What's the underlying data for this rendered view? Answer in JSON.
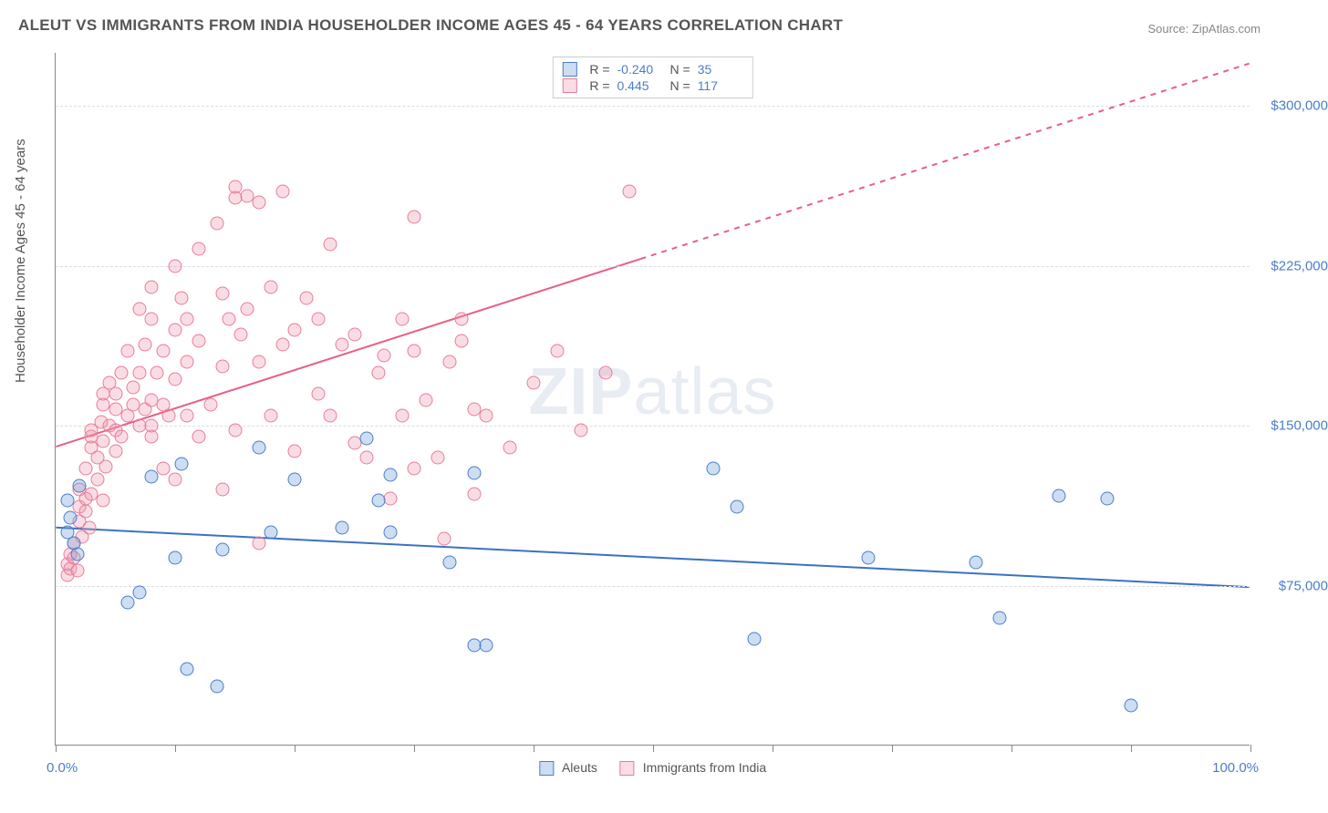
{
  "title": "ALEUT VS IMMIGRANTS FROM INDIA HOUSEHOLDER INCOME AGES 45 - 64 YEARS CORRELATION CHART",
  "source": "Source: ZipAtlas.com",
  "watermark_zip": "ZIP",
  "watermark_atlas": "atlas",
  "y_axis_label": "Householder Income Ages 45 - 64 years",
  "chart": {
    "type": "scatter",
    "background_color": "#ffffff",
    "grid_color": "#dddddd",
    "axis_color": "#888888",
    "xlim": [
      0,
      100
    ],
    "ylim": [
      0,
      325000
    ],
    "x_tick_positions": [
      0,
      10,
      20,
      30,
      40,
      50,
      60,
      70,
      80,
      90,
      100
    ],
    "x_min_label": "0.0%",
    "x_max_label": "100.0%",
    "y_ticks": [
      {
        "value": 75000,
        "label": "$75,000"
      },
      {
        "value": 150000,
        "label": "$150,000"
      },
      {
        "value": 225000,
        "label": "$225,000"
      },
      {
        "value": 300000,
        "label": "$300,000"
      }
    ],
    "marker_radius": 7.5,
    "line_width": 2,
    "series": [
      {
        "id": "aleuts",
        "label": "Aleuts",
        "fill_color": "rgba(113,161,221,0.35)",
        "stroke_color": "#4a7ec9",
        "line_color": "#3a72c4",
        "R": "-0.240",
        "N": "35",
        "trend": {
          "x1": 0,
          "y1": 102000,
          "x2": 100,
          "y2": 74000,
          "dash_from_x": 100
        },
        "points": [
          [
            1,
            115000
          ],
          [
            1,
            100000
          ],
          [
            1.2,
            107000
          ],
          [
            1.5,
            95000
          ],
          [
            1.8,
            90000
          ],
          [
            2,
            122000
          ],
          [
            6,
            67000
          ],
          [
            7,
            72000
          ],
          [
            8,
            126000
          ],
          [
            10,
            88000
          ],
          [
            10.5,
            132000
          ],
          [
            11,
            36000
          ],
          [
            13.5,
            28000
          ],
          [
            14,
            92000
          ],
          [
            17,
            140000
          ],
          [
            18,
            100000
          ],
          [
            20,
            125000
          ],
          [
            24,
            102000
          ],
          [
            26,
            144000
          ],
          [
            27,
            115000
          ],
          [
            28,
            100000
          ],
          [
            28,
            127000
          ],
          [
            33,
            86000
          ],
          [
            35,
            47000
          ],
          [
            35,
            128000
          ],
          [
            36,
            47000
          ],
          [
            55,
            130000
          ],
          [
            57,
            112000
          ],
          [
            58.5,
            50000
          ],
          [
            68,
            88000
          ],
          [
            77,
            86000
          ],
          [
            79,
            60000
          ],
          [
            84,
            117000
          ],
          [
            88,
            116000
          ],
          [
            90,
            19000
          ]
        ]
      },
      {
        "id": "immigrants_india",
        "label": "Immigrants from India",
        "fill_color": "rgba(240,150,170,0.32)",
        "stroke_color": "#e77d9a",
        "line_color": "#e85f85",
        "R": "0.445",
        "N": "117",
        "trend": {
          "x1": 0,
          "y1": 140000,
          "x2": 100,
          "y2": 320000,
          "dash_from_x": 49
        },
        "points": [
          [
            1,
            80000
          ],
          [
            1,
            85000
          ],
          [
            1.2,
            83000
          ],
          [
            1.2,
            90000
          ],
          [
            1.5,
            88000
          ],
          [
            1.5,
            95000
          ],
          [
            1.8,
            82000
          ],
          [
            2,
            105000
          ],
          [
            2,
            112000
          ],
          [
            2,
            120000
          ],
          [
            2.2,
            98000
          ],
          [
            2.5,
            110000
          ],
          [
            2.5,
            116000
          ],
          [
            2.5,
            130000
          ],
          [
            2.8,
            102000
          ],
          [
            3,
            118000
          ],
          [
            3,
            140000
          ],
          [
            3,
            145000
          ],
          [
            3,
            148000
          ],
          [
            3.5,
            125000
          ],
          [
            3.5,
            135000
          ],
          [
            3.8,
            152000
          ],
          [
            4,
            115000
          ],
          [
            4,
            143000
          ],
          [
            4,
            160000
          ],
          [
            4,
            165000
          ],
          [
            4.2,
            131000
          ],
          [
            4.5,
            150000
          ],
          [
            4.5,
            170000
          ],
          [
            5,
            138000
          ],
          [
            5,
            148000
          ],
          [
            5,
            158000
          ],
          [
            5,
            165000
          ],
          [
            5.5,
            145000
          ],
          [
            5.5,
            175000
          ],
          [
            6,
            155000
          ],
          [
            6,
            185000
          ],
          [
            6.5,
            160000
          ],
          [
            6.5,
            168000
          ],
          [
            7,
            150000
          ],
          [
            7,
            175000
          ],
          [
            7,
            205000
          ],
          [
            7.5,
            158000
          ],
          [
            7.5,
            188000
          ],
          [
            8,
            145000
          ],
          [
            8,
            150000
          ],
          [
            8,
            162000
          ],
          [
            8,
            200000
          ],
          [
            8,
            215000
          ],
          [
            8.5,
            175000
          ],
          [
            9,
            130000
          ],
          [
            9,
            160000
          ],
          [
            9,
            185000
          ],
          [
            9.5,
            155000
          ],
          [
            10,
            125000
          ],
          [
            10,
            172000
          ],
          [
            10,
            195000
          ],
          [
            10,
            225000
          ],
          [
            10.5,
            210000
          ],
          [
            11,
            155000
          ],
          [
            11,
            180000
          ],
          [
            11,
            200000
          ],
          [
            12,
            145000
          ],
          [
            12,
            190000
          ],
          [
            12,
            233000
          ],
          [
            13,
            160000
          ],
          [
            13.5,
            245000
          ],
          [
            14,
            120000
          ],
          [
            14,
            178000
          ],
          [
            14,
            212000
          ],
          [
            14.5,
            200000
          ],
          [
            15,
            148000
          ],
          [
            15,
            257000
          ],
          [
            15,
            262000
          ],
          [
            15.5,
            193000
          ],
          [
            16,
            205000
          ],
          [
            16,
            258000
          ],
          [
            17,
            95000
          ],
          [
            17,
            180000
          ],
          [
            17,
            255000
          ],
          [
            18,
            155000
          ],
          [
            18,
            215000
          ],
          [
            19,
            188000
          ],
          [
            19,
            260000
          ],
          [
            20,
            138000
          ],
          [
            20,
            195000
          ],
          [
            21,
            210000
          ],
          [
            22,
            165000
          ],
          [
            22,
            200000
          ],
          [
            23,
            155000
          ],
          [
            23,
            235000
          ],
          [
            24,
            188000
          ],
          [
            25,
            142000
          ],
          [
            25,
            193000
          ],
          [
            26,
            135000
          ],
          [
            27,
            175000
          ],
          [
            27.5,
            183000
          ],
          [
            28,
            116000
          ],
          [
            29,
            155000
          ],
          [
            29,
            200000
          ],
          [
            30,
            130000
          ],
          [
            30,
            185000
          ],
          [
            30,
            248000
          ],
          [
            31,
            162000
          ],
          [
            32,
            135000
          ],
          [
            32.5,
            97000
          ],
          [
            33,
            180000
          ],
          [
            34,
            190000
          ],
          [
            35,
            118000
          ],
          [
            35,
            158000
          ],
          [
            36,
            155000
          ],
          [
            38,
            140000
          ],
          [
            40,
            170000
          ],
          [
            42,
            185000
          ],
          [
            44,
            148000
          ],
          [
            46,
            175000
          ],
          [
            48,
            260000
          ],
          [
            34,
            200000
          ]
        ]
      }
    ]
  },
  "colors": {
    "title_text": "#555555",
    "source_text": "#888888",
    "tick_label": "#4a7ec9",
    "watermark": "rgba(150,170,200,0.22)"
  }
}
